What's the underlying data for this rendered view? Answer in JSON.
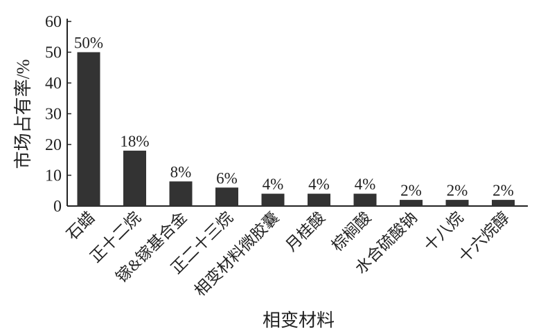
{
  "chart_data": {
    "type": "bar",
    "title": "",
    "xlabel": "相变材料",
    "ylabel": "市场占有率/%",
    "ylim": [
      0,
      60
    ],
    "yticks": [
      0,
      10,
      20,
      30,
      40,
      50,
      60
    ],
    "categories": [
      "石蜡",
      "正十二烷",
      "镓&镓基合金",
      "正二十三烷",
      "相变材料微胶囊",
      "月桂酸",
      "棕榈酸",
      "水合硫酸钠",
      "十八烷",
      "十六烷醇"
    ],
    "values": [
      50,
      18,
      8,
      6,
      4,
      4,
      4,
      2,
      2,
      2
    ],
    "data_labels": [
      "50%",
      "18%",
      "8%",
      "6%",
      "4%",
      "4%",
      "4%",
      "2%",
      "2%",
      "2%"
    ],
    "bar_color": "#333333",
    "grid": false
  }
}
